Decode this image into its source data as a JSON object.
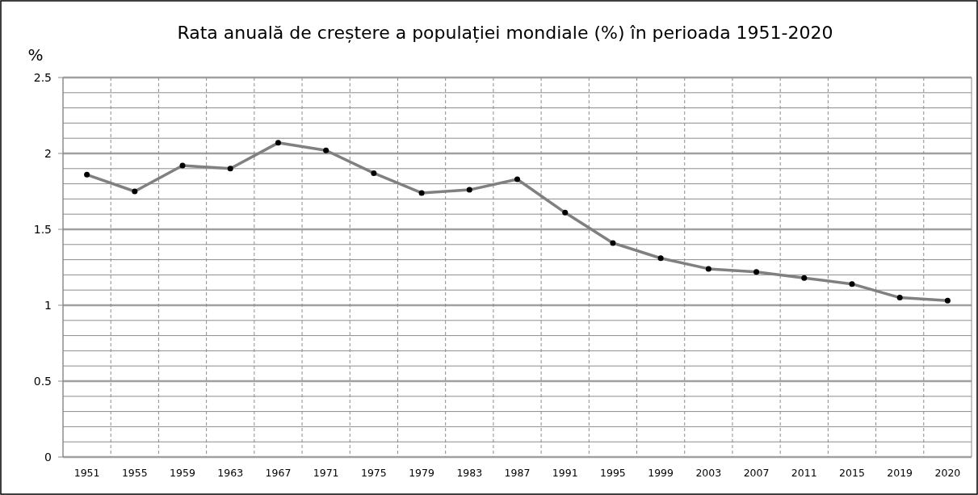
{
  "chart_data": {
    "type": "line",
    "title": "Rata anuală de creștere a populației mondiale (%) în perioada 1951-2020",
    "ylabel": "%",
    "categories": [
      "1951",
      "1955",
      "1959",
      "1963",
      "1967",
      "1971",
      "1975",
      "1979",
      "1983",
      "1987",
      "1991",
      "1995",
      "1999",
      "2003",
      "2007",
      "2011",
      "2015",
      "2019",
      "2020"
    ],
    "series": [
      {
        "color": "#808080",
        "values": [
          1.86,
          1.75,
          1.92,
          1.9,
          2.07,
          2.02,
          1.87,
          1.74,
          1.76,
          1.83,
          1.61,
          1.41,
          1.31,
          1.24,
          1.22,
          1.18,
          1.14,
          1.05,
          1.03
        ]
      }
    ],
    "ylim": [
      0,
      2.5
    ],
    "yticks": [
      0,
      0.5,
      1,
      1.5,
      2,
      2.5
    ],
    "grid": true,
    "marker": "circle"
  }
}
